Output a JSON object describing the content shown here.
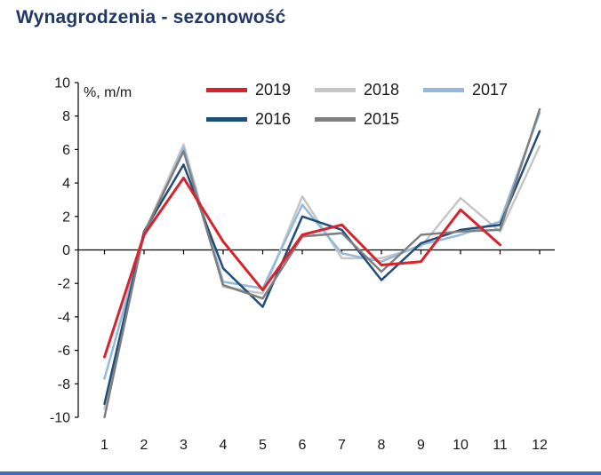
{
  "page": {
    "title": "Wynagrodzenia - sezonowość"
  },
  "chart_data": {
    "type": "line",
    "title": "Wynagrodzenia - sezonowość",
    "ylabel": "%, m/m",
    "x": [
      1,
      2,
      3,
      4,
      5,
      6,
      7,
      8,
      9,
      10,
      11,
      12
    ],
    "yticks": [
      10,
      8,
      6,
      4,
      2,
      0,
      -2,
      -4,
      -6,
      -8,
      -10
    ],
    "ylim": [
      -10,
      10
    ],
    "grid": false,
    "legend_position": "top",
    "series": [
      {
        "name": "2019",
        "color": "#D9232C",
        "width": 3,
        "values": [
          -6.4,
          0.9,
          4.3,
          0.5,
          -2.4,
          0.9,
          1.5,
          -0.9,
          -0.7,
          2.4,
          0.3,
          null
        ]
      },
      {
        "name": "2018",
        "color": "#C6C6C6",
        "width": 2.5,
        "values": [
          -9.5,
          1.0,
          6.3,
          -2.2,
          -2.6,
          3.2,
          -0.5,
          -0.5,
          0.2,
          3.1,
          1.1,
          6.2
        ]
      },
      {
        "name": "2017",
        "color": "#93B9DC",
        "width": 2.5,
        "values": [
          -7.7,
          0.8,
          6.1,
          -1.9,
          -2.3,
          2.7,
          -0.2,
          -0.7,
          0.3,
          0.9,
          1.7,
          8.2
        ]
      },
      {
        "name": "2016",
        "color": "#1F4E79",
        "width": 2.5,
        "values": [
          -9.2,
          1.1,
          5.1,
          -1.1,
          -3.4,
          2.0,
          1.2,
          -1.8,
          0.4,
          1.2,
          1.5,
          7.1
        ]
      },
      {
        "name": "2015",
        "color": "#7F7F7F",
        "width": 2.5,
        "values": [
          -10.0,
          1.0,
          5.9,
          -2.1,
          -2.9,
          0.8,
          1.0,
          -1.3,
          0.9,
          1.1,
          1.2,
          8.4
        ]
      }
    ],
    "draw_order": [
      "2018",
      "2017",
      "2016",
      "2015",
      "2019"
    ]
  },
  "colors": {
    "title": "#1F3864",
    "axis": "#000000",
    "tick_label": "#1a1a1a",
    "bottom_bar": "#3B6EB5"
  }
}
